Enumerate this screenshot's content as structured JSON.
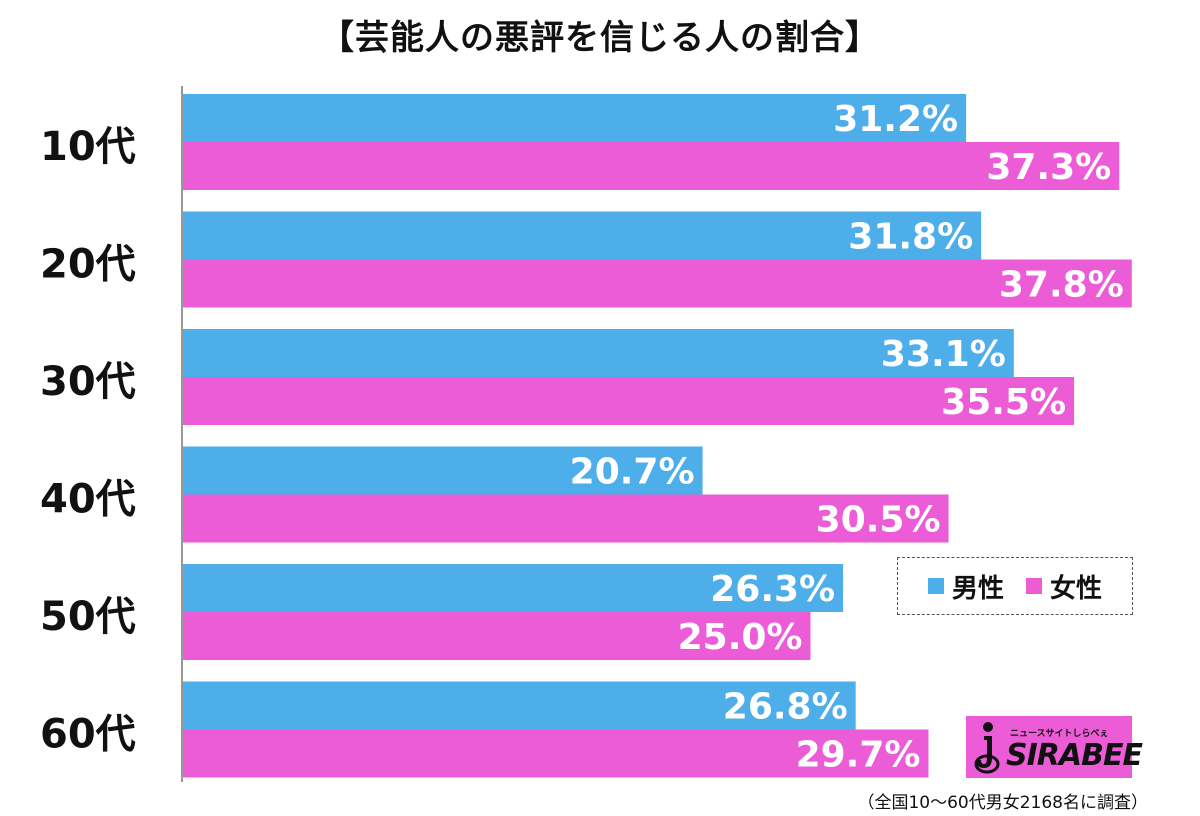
{
  "chart_data": {
    "type": "bar",
    "orientation": "horizontal",
    "title": "【芸能人の悪評を信じる人の割合】",
    "categories": [
      "10代",
      "20代",
      "30代",
      "40代",
      "50代",
      "60代"
    ],
    "series": [
      {
        "name": "男性",
        "color": "#4eaeea",
        "values": [
          31.2,
          31.8,
          33.1,
          20.7,
          26.3,
          26.8
        ],
        "labels": [
          "31.2%",
          "31.8%",
          "33.1%",
          "20.7%",
          "26.3%",
          "26.8%"
        ]
      },
      {
        "name": "女性",
        "color": "#ec5cd6",
        "values": [
          37.3,
          37.8,
          35.5,
          30.5,
          25.0,
          29.7
        ],
        "labels": [
          "37.3%",
          "37.8%",
          "35.5%",
          "30.5%",
          "25.0%",
          "29.7%"
        ]
      }
    ],
    "xlim": [
      0,
      40
    ],
    "legend_position": "bottom-right",
    "grid": false
  },
  "legend": {
    "male": "男性",
    "female": "女性"
  },
  "logo": {
    "tagline": "ニュースサイトしらべぇ",
    "wordmark": "SIRABEE"
  },
  "note": "（全国10〜60代男女2168名に調査）"
}
